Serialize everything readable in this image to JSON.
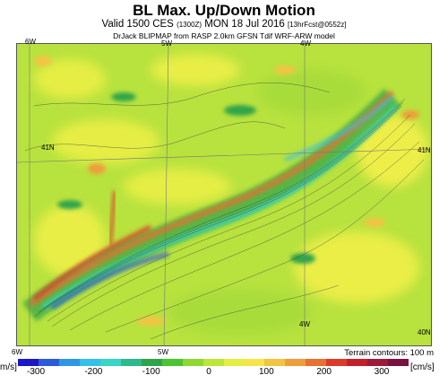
{
  "title": "BL Max. Up/Down Motion",
  "valid_line": {
    "main": "Valid 1500 CES",
    "utc": "(1300Z)",
    "date": "MON 18 Jul 2016",
    "fcst": "[13hrFcst@0552z]"
  },
  "model_line": "DrJack BLIPMAP from RASP 2.0km GFSN Tdif WRF-ARW model",
  "terrain_note": "Terrain contours: 100 m",
  "map_labels": {
    "lon_top_left": "6W",
    "lon_top_mid": "5W",
    "lon_top_right": "4W",
    "lon_bottom_left": "6W",
    "lon_bottom_mid": "5W",
    "lon_inner_bottom": "4W",
    "lat_left_41": "41N",
    "lat_right_41": "41N",
    "lat_right_40": "40N"
  },
  "colorbar": {
    "unit_left": "[cm/s]",
    "unit_right": "[cm/s]",
    "ticks": [
      "-300",
      "-200",
      "-100",
      "0",
      "100",
      "200",
      "300"
    ],
    "colors": [
      "#1a17c8",
      "#2b5bd8",
      "#2f96e4",
      "#35c0ea",
      "#38d6c4",
      "#2fb88a",
      "#2ea44a",
      "#4cc430",
      "#8fd832",
      "#bce63a",
      "#e3ee42",
      "#f6e54a",
      "#f2c443",
      "#ee9e3a",
      "#e87032",
      "#dc3a2c",
      "#c2202c",
      "#9e1a3a",
      "#7a1240"
    ]
  }
}
